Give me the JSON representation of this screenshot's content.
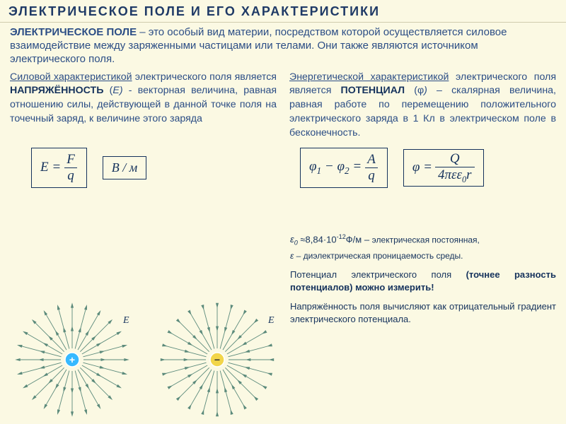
{
  "header": {
    "title": "ЭЛЕКТРИЧЕСКОЕ ПОЛЕ И ЕГО ХАРАКТЕРИСТИКИ"
  },
  "intro": {
    "bold": "ЭЛЕКТРИЧЕСКОЕ ПОЛЕ",
    "rest": " – это особый вид материи, посредством которой осуществляется силовое взаимодействие между заряженными частицами или телами. Они также являются источником электрического поля."
  },
  "left_defn": {
    "under_pre": "Силовой характеристикой",
    "pre": " электрического поля является ",
    "bold": "НАПРЯЖЁННОСТЬ",
    "sym_open": " (",
    "sym": "E",
    "sym_close": ") ",
    "rest": "- векторная величина, равная отношению силы, действующей в данной точке поля на точечный заряд, к величине этого заряда"
  },
  "right_defn": {
    "under_pre": "Энергетической характеристикой",
    "pre": " электрического поля является ",
    "bold": "ПОТЕНЦИАЛ",
    "sym_open": " (φ",
    "sym_close": ") ",
    "rest": "– скалярная величина, равная работе по перемещению положительного электрического заряда в 1 Кл в электрическом поле  в бесконечность."
  },
  "formulas": {
    "E_eq_lhs": "E =",
    "E_num": "F",
    "E_den": "q",
    "E_unit": "В / м",
    "phi_diff_lhs": "φ",
    "phi_sub1": "1",
    "phi_minus": " − φ",
    "phi_sub2": "2",
    "phi_eq": " =",
    "phi_num": "A",
    "phi_den": "q",
    "phi_single_lhs": "φ =",
    "phi_single_num": "Q",
    "phi_single_den_pre": "4πεε",
    "phi_single_den_sub": "0",
    "phi_single_den_post": "r"
  },
  "constants": {
    "line1_pre": "ε",
    "line1_sub": "0",
    "line1_mid": " ≈8,84·10",
    "line1_sup": "-12",
    "line1_post": "Ф/м – ",
    "line1_tail": "электрическая постоянная,",
    "line2_pre": "ε – ",
    "line2_body": "диэлектрическая проницаемость среды."
  },
  "note1": {
    "pre": "Потенциал электрического поля ",
    "bold": "(точнее разность потенциалов) можно измерить!"
  },
  "note2": "Напряжённость поля вычисляют как отрицательный градиент электрического потенциала.",
  "diagrams": {
    "E_label": "E",
    "n_lines": 24,
    "positive": {
      "charge_color": "#36b9ff",
      "sign": "+",
      "arrow_out": true
    },
    "negative": {
      "charge_color": "#f2d54a",
      "sign": "−",
      "arrow_out": false
    },
    "stroke": "#5b8a7b",
    "r_inner": 16,
    "r_outer": 78
  }
}
